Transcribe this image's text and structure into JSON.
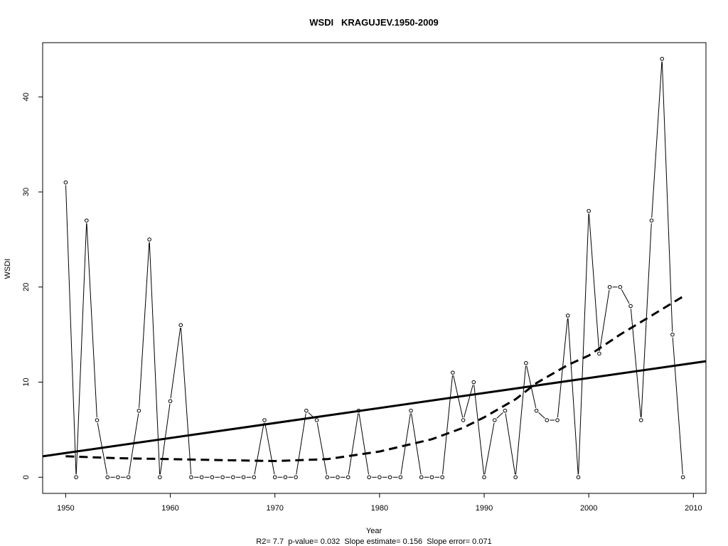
{
  "chart_data": {
    "type": "line",
    "title": "WSDI   KRAGUJEV.1950-2009",
    "xlabel": "Year",
    "ylabel": "WSDI",
    "stats_line": "R2= 7.7  p-value= 0.032  Slope estimate= 0.156  Slope error= 0.071",
    "xlim": [
      1947.8,
      2011.2
    ],
    "ylim": [
      -1.7,
      45.7
    ],
    "xticks": [
      1950,
      1960,
      1970,
      1980,
      1990,
      2000,
      2010
    ],
    "yticks": [
      0,
      10,
      20,
      30,
      40
    ],
    "grid": false,
    "legend": "none",
    "x": [
      1950,
      1951,
      1952,
      1953,
      1954,
      1955,
      1956,
      1957,
      1958,
      1959,
      1960,
      1961,
      1962,
      1963,
      1964,
      1965,
      1966,
      1967,
      1968,
      1969,
      1970,
      1971,
      1972,
      1973,
      1974,
      1975,
      1976,
      1977,
      1978,
      1979,
      1980,
      1981,
      1982,
      1983,
      1984,
      1985,
      1986,
      1987,
      1988,
      1989,
      1990,
      1991,
      1992,
      1993,
      1994,
      1995,
      1996,
      1997,
      1998,
      1999,
      2000,
      2001,
      2002,
      2003,
      2004,
      2005,
      2006,
      2007,
      2008,
      2009
    ],
    "series": [
      {
        "style": "observed",
        "values": [
          31,
          0,
          27,
          6,
          0,
          0,
          0,
          7,
          25,
          0,
          8,
          16,
          0,
          0,
          0,
          0,
          0,
          0,
          0,
          6,
          0,
          0,
          0,
          7,
          6,
          0,
          0,
          0,
          7,
          0,
          0,
          0,
          0,
          7,
          0,
          0,
          0,
          11,
          6,
          10,
          0,
          6,
          7,
          0,
          12,
          7,
          6,
          6,
          17,
          0,
          28,
          13,
          20,
          20,
          18,
          6,
          27,
          44,
          15,
          0
        ]
      },
      {
        "style": "linear-trend",
        "x": [
          1947.8,
          2011.2
        ],
        "values": [
          2.2,
          12.2
        ]
      },
      {
        "style": "smooth-trend",
        "x": [
          1950,
          1955,
          1960,
          1965,
          1970,
          1975,
          1980,
          1985,
          1988,
          1990,
          1993,
          1995,
          1998,
          2000,
          2003,
          2006,
          2009
        ],
        "values": [
          2.2,
          2.0,
          1.9,
          1.8,
          1.7,
          1.9,
          2.7,
          4.0,
          5.2,
          6.3,
          8.2,
          9.9,
          11.8,
          12.8,
          15.0,
          17.0,
          19.0
        ]
      }
    ]
  }
}
